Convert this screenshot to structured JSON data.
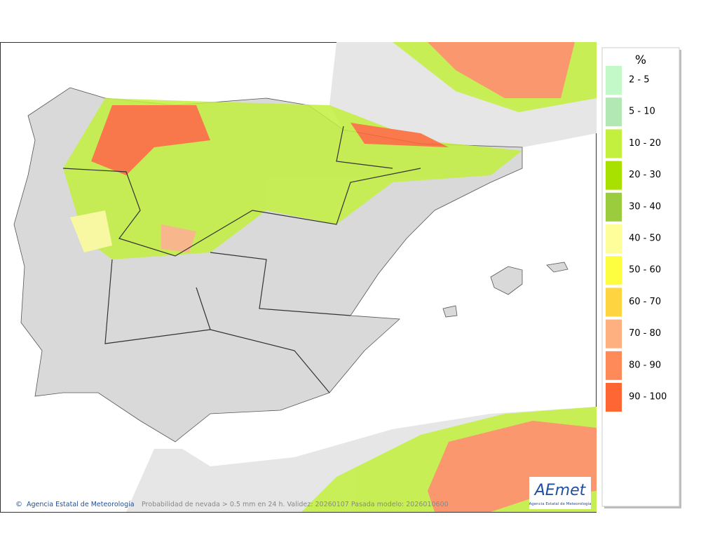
{
  "legend": {
    "title": "%",
    "items": [
      {
        "label": "2 - 5",
        "color": "#c3f9c9"
      },
      {
        "label": "5 - 10",
        "color": "#b2e8b4"
      },
      {
        "label": "10 - 20",
        "color": "#c3f03e"
      },
      {
        "label": "20 - 30",
        "color": "#a8e000"
      },
      {
        "label": "30 - 40",
        "color": "#9acc3e"
      },
      {
        "label": "40 - 50",
        "color": "#fefe9a"
      },
      {
        "label": "50 - 60",
        "color": "#fefe40"
      },
      {
        "label": "60 - 70",
        "color": "#fed540"
      },
      {
        "label": "70 - 80",
        "color": "#feb080"
      },
      {
        "label": "80 - 90",
        "color": "#fe8a5a"
      },
      {
        "label": "90 - 100",
        "color": "#fe6633"
      }
    ]
  },
  "footer": {
    "credit": "Agencia Estatal de Meteorología",
    "caption": "Probabilidad de nevada > 0.5 mm en 24 h. Validez: 20260107 Pasada modelo: 2026010600"
  },
  "logo": {
    "name": "AEmet",
    "subtitle": "Agencia Estatal de Meteorología"
  }
}
